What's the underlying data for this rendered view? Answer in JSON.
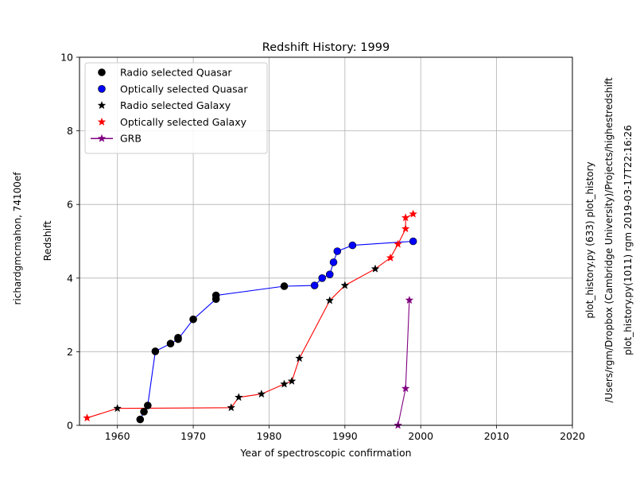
{
  "chart_data": {
    "type": "scatter",
    "title": "Redshift History: 1999",
    "xlabel": "Year of spectroscopic confirmation",
    "ylabel": "Redshift",
    "xlim": [
      1955,
      2020
    ],
    "ylim": [
      0,
      10
    ],
    "xticks": [
      1960,
      1970,
      1980,
      1990,
      2000,
      2010,
      2020
    ],
    "yticks": [
      0,
      2,
      4,
      6,
      8,
      10
    ],
    "grid": true,
    "legend_position": "top-left",
    "series": [
      {
        "name": "Radio selected Quasar",
        "marker": "circle",
        "color": "#000000",
        "points": [
          [
            1963,
            0.16
          ],
          [
            1963.5,
            0.37
          ],
          [
            1964,
            0.54
          ],
          [
            1965,
            2.01
          ],
          [
            1967,
            2.22
          ],
          [
            1968,
            2.34
          ],
          [
            1968,
            2.38
          ],
          [
            1970,
            2.88
          ],
          [
            1973,
            3.43
          ],
          [
            1973,
            3.53
          ],
          [
            1982,
            3.78
          ]
        ]
      },
      {
        "name": "Optically selected Quasar",
        "marker": "circle",
        "color": "#0000ff",
        "points": [
          [
            1986,
            3.8
          ],
          [
            1987,
            4.0
          ],
          [
            1988,
            4.1
          ],
          [
            1988.5,
            4.43
          ],
          [
            1989,
            4.73
          ],
          [
            1991,
            4.89
          ],
          [
            1999,
            5.0
          ]
        ]
      },
      {
        "name": "Radio selected Galaxy",
        "marker": "star",
        "color": "#000000",
        "points": [
          [
            1960,
            0.46
          ],
          [
            1975,
            0.48
          ],
          [
            1976,
            0.76
          ],
          [
            1979,
            0.85
          ],
          [
            1982,
            1.12
          ],
          [
            1983,
            1.2
          ],
          [
            1984,
            1.82
          ],
          [
            1988,
            3.39
          ],
          [
            1990,
            3.8
          ],
          [
            1994,
            4.25
          ]
        ]
      },
      {
        "name": "Optically selected Galaxy",
        "marker": "star",
        "color": "#ff0000",
        "points": [
          [
            1956,
            0.2
          ],
          [
            1996,
            4.55
          ],
          [
            1997,
            4.92
          ],
          [
            1998,
            5.34
          ],
          [
            1998,
            5.64
          ],
          [
            1999,
            5.74
          ]
        ]
      },
      {
        "name": "GRB",
        "marker": "star",
        "color": "#800080",
        "points": [
          [
            1997,
            0.0
          ],
          [
            1998,
            1.0
          ],
          [
            1998.5,
            3.4
          ]
        ]
      }
    ],
    "lines": [
      {
        "color": "#0000ff",
        "points": [
          [
            1963,
            0.16
          ],
          [
            1963.5,
            0.37
          ],
          [
            1964,
            0.54
          ],
          [
            1965,
            2.01
          ],
          [
            1967,
            2.22
          ],
          [
            1968,
            2.34
          ],
          [
            1970,
            2.88
          ],
          [
            1973,
            3.43
          ],
          [
            1973,
            3.53
          ],
          [
            1982,
            3.78
          ],
          [
            1986,
            3.8
          ],
          [
            1987,
            4.0
          ],
          [
            1988,
            4.1
          ],
          [
            1988.5,
            4.43
          ],
          [
            1989,
            4.73
          ],
          [
            1991,
            4.89
          ],
          [
            1999,
            5.0
          ]
        ]
      },
      {
        "color": "#ff0000",
        "points": [
          [
            1956,
            0.2
          ],
          [
            1960,
            0.46
          ],
          [
            1975,
            0.48
          ],
          [
            1976,
            0.76
          ],
          [
            1979,
            0.85
          ],
          [
            1982,
            1.12
          ],
          [
            1983,
            1.2
          ],
          [
            1984,
            1.82
          ],
          [
            1988,
            3.39
          ],
          [
            1990,
            3.8
          ],
          [
            1994,
            4.25
          ],
          [
            1996,
            4.55
          ],
          [
            1997,
            4.92
          ],
          [
            1998,
            5.34
          ],
          [
            1998,
            5.64
          ],
          [
            1999,
            5.74
          ]
        ]
      },
      {
        "color": "#800080",
        "points": [
          [
            1997,
            0.0
          ],
          [
            1998,
            1.0
          ],
          [
            1998.5,
            3.4
          ]
        ]
      }
    ]
  },
  "annotations": {
    "left_note": "richardgmcmahon, 74100ef",
    "right_note_1": "plot_history.py (633) plot_history",
    "right_note_2": "/Users/rgm/Dropbox (Cambridge University)/Projects/highestredshift",
    "right_note_3": "plot_history.py(1011) rgm 2019-03-17T22:16:26"
  }
}
